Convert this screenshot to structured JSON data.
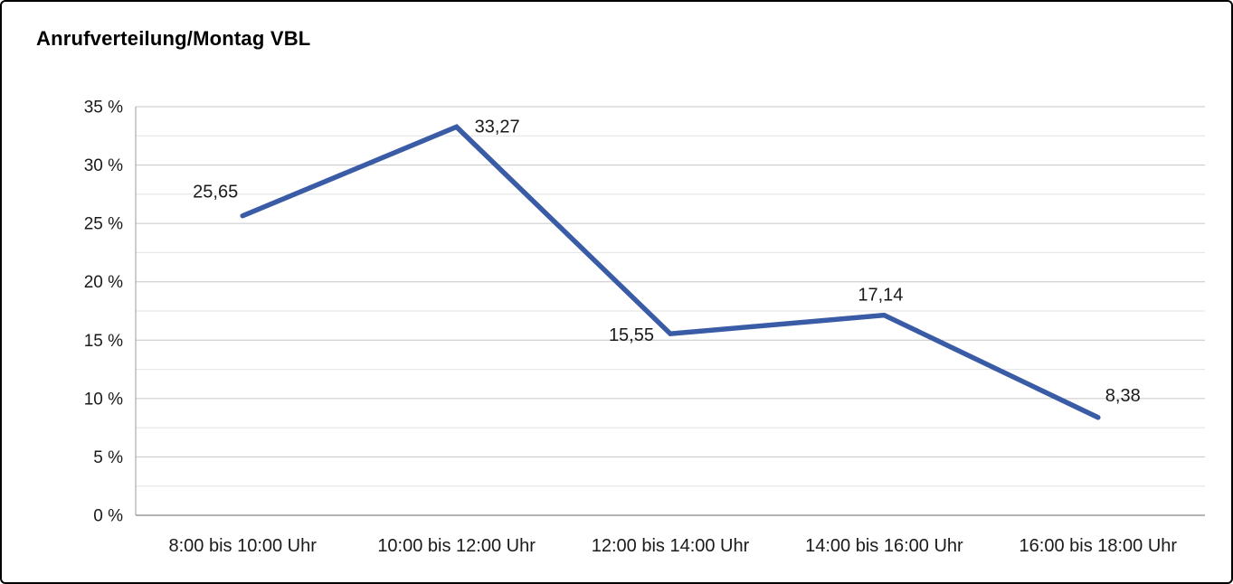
{
  "chart_data": {
    "type": "line",
    "title": "Anrufverteilung/Montag VBL",
    "categories": [
      "8:00 bis 10:00 Uhr",
      "10:00 bis 12:00 Uhr",
      "12:00 bis 14:00 Uhr",
      "14:00 bis 16:00 Uhr",
      "16:00 bis 18:00 Uhr"
    ],
    "values": [
      25.65,
      33.27,
      15.55,
      17.14,
      8.38
    ],
    "data_labels": [
      "25,65",
      "33,27",
      "15,55",
      "17,14",
      "8,38"
    ],
    "label_positions": [
      "above-left",
      "right",
      "left",
      "above",
      "above-right"
    ],
    "ylim": [
      0,
      35
    ],
    "y_major_step": 5,
    "y_minor_step": 2.5,
    "y_tick_labels": [
      "0 %",
      "5 %",
      "10 %",
      "15 %",
      "20 %",
      "25 %",
      "30 %",
      "35 %"
    ],
    "xlabel": "",
    "ylabel": "",
    "grid": true,
    "legend": "none",
    "line_color": "#3A5BA5",
    "text_color": "#1a1a1a",
    "major_grid_color": "#c6c6c6",
    "minor_grid_color": "#e2e2e2",
    "axis_color": "#9b9b9b"
  }
}
